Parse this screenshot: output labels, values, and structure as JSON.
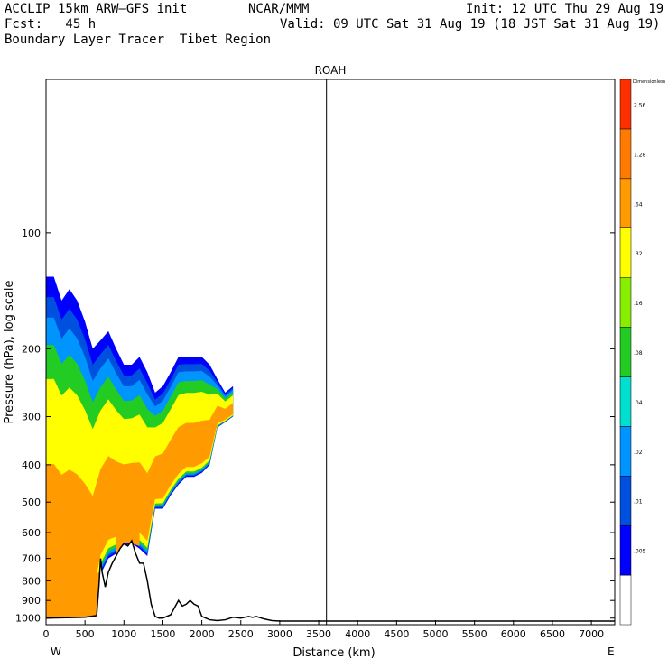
{
  "header": {
    "line1_left": "ACCLIP 15km ARW–GFS init",
    "line1_center": "NCAR/MMM",
    "line1_right": "Init: 12 UTC Thu 29 Aug 19",
    "line2_left": "Fcst:   45 h",
    "line2_right": "Valid: 09 UTC Sat 31 Aug 19 (18 JST Sat 31 Aug 19)",
    "line3_left": "Boundary Layer Tracer  Tibet Region"
  },
  "chart_data": {
    "type": "contour-cross-section",
    "title": "ROAH",
    "xlabel": "Distance (km)",
    "ylabel": "Pressure (hPa), log scale",
    "x_end_labels": [
      "W",
      "E"
    ],
    "xlim": [
      0,
      7300
    ],
    "ylim_hPa": [
      1040,
      40
    ],
    "y_scale": "log",
    "x_ticks": [
      0,
      500,
      1000,
      1500,
      2000,
      2500,
      3000,
      3500,
      4000,
      4500,
      5000,
      5500,
      6000,
      6500,
      7000
    ],
    "y_ticks": [
      1000,
      900,
      800,
      700,
      600,
      500,
      400,
      300,
      200,
      100
    ],
    "station_marker_km": 3600,
    "colorbar": {
      "title": "Dimensionless",
      "levels": [
        "",
        ".005",
        ".01",
        ".02",
        ".04",
        ".08",
        ".16",
        ".32",
        ".64",
        "1.28",
        "2.56",
        ""
      ],
      "colors": [
        "#ffffff",
        "#0000ff",
        "#0050e0",
        "#0094ff",
        "#00e0d0",
        "#22cc22",
        "#88ee00",
        "#ffff00",
        "#ff9a00",
        "#ff7a00",
        "#ff3000"
      ]
    },
    "terrain_pressure": {
      "x": [
        0,
        200,
        400,
        500,
        650,
        680,
        700,
        720,
        760,
        800,
        850,
        900,
        950,
        1000,
        1050,
        1100,
        1150,
        1200,
        1250,
        1300,
        1350,
        1400,
        1450,
        1500,
        1600,
        1700,
        1750,
        1800,
        1850,
        1900,
        1950,
        2000,
        2100,
        2200,
        2300,
        2400,
        2500,
        2600,
        2650,
        2700,
        2800,
        2900,
        3000,
        3500,
        7300
      ],
      "p": [
        1000,
        998,
        996,
        995,
        985,
        820,
        700,
        760,
        830,
        760,
        720,
        690,
        660,
        640,
        650,
        630,
        680,
        720,
        720,
        800,
        920,
        990,
        1000,
        1000,
        980,
        900,
        930,
        920,
        900,
        920,
        930,
        990,
        1010,
        1015,
        1010,
        995,
        1000,
        990,
        995,
        990,
        1005,
        1015,
        1018,
        1018,
        1018
      ]
    },
    "tracer_plume": {
      "description": "filled contour region of boundary layer tracer concentration",
      "envelope_x": [
        0,
        100,
        200,
        300,
        400,
        500,
        600,
        700,
        800,
        900,
        1000,
        1100,
        1200,
        1300,
        1400,
        1500,
        1600,
        1700,
        1800,
        1900,
        2000,
        2100,
        2200,
        2300,
        2400
      ],
      "envelope_top_hPa": [
        130,
        130,
        150,
        140,
        150,
        170,
        200,
        190,
        180,
        200,
        220,
        220,
        210,
        230,
        260,
        250,
        230,
        210,
        210,
        210,
        210,
        220,
        240,
        260,
        250
      ],
      "envelope_bottom_hPa": [
        1000,
        995,
        995,
        995,
        990,
        990,
        990,
        770,
        700,
        680,
        650,
        640,
        660,
        690,
        520,
        520,
        480,
        450,
        430,
        430,
        420,
        400,
        320,
        310,
        300
      ]
    }
  }
}
